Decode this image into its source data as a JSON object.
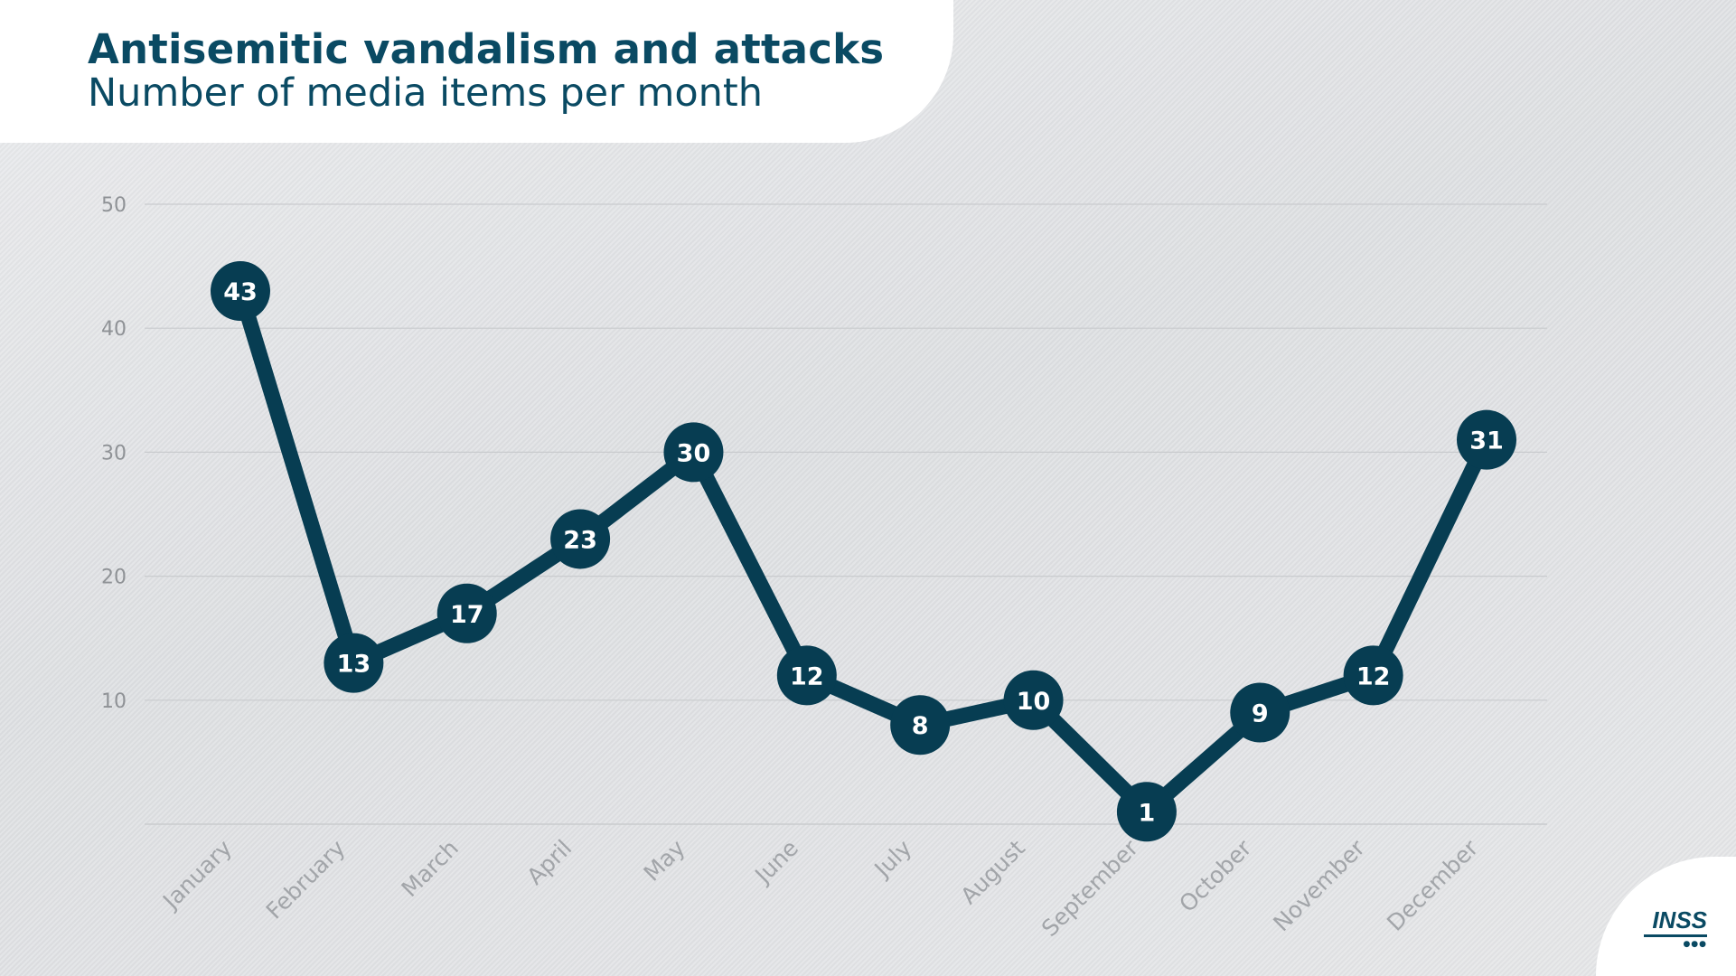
{
  "header": {
    "title": "Antisemitic vandalism and attacks",
    "subtitle": "Number of media items per month"
  },
  "logo": {
    "text": "INSS",
    "icon": "inss-logo-icon"
  },
  "colors": {
    "line": "#073d52",
    "marker": "#073d52",
    "title": "#0a4a63",
    "grid": "#c9cbce",
    "tick": "#8f9296"
  },
  "chart_data": {
    "type": "line",
    "title": "Antisemitic vandalism and attacks",
    "subtitle": "Number of media items per month",
    "xlabel": "",
    "ylabel": "",
    "categories": [
      "January",
      "February",
      "March",
      "April",
      "May",
      "June",
      "July",
      "August",
      "September",
      "October",
      "November",
      "December"
    ],
    "series": [
      {
        "values": [
          43,
          13,
          17,
          23,
          30,
          12,
          8,
          10,
          1,
          9,
          12,
          31
        ]
      }
    ],
    "ylim": [
      0,
      50
    ],
    "yticks": [
      10,
      20,
      30,
      40,
      50
    ],
    "grid": true,
    "legend": "none",
    "data_labels": true
  }
}
